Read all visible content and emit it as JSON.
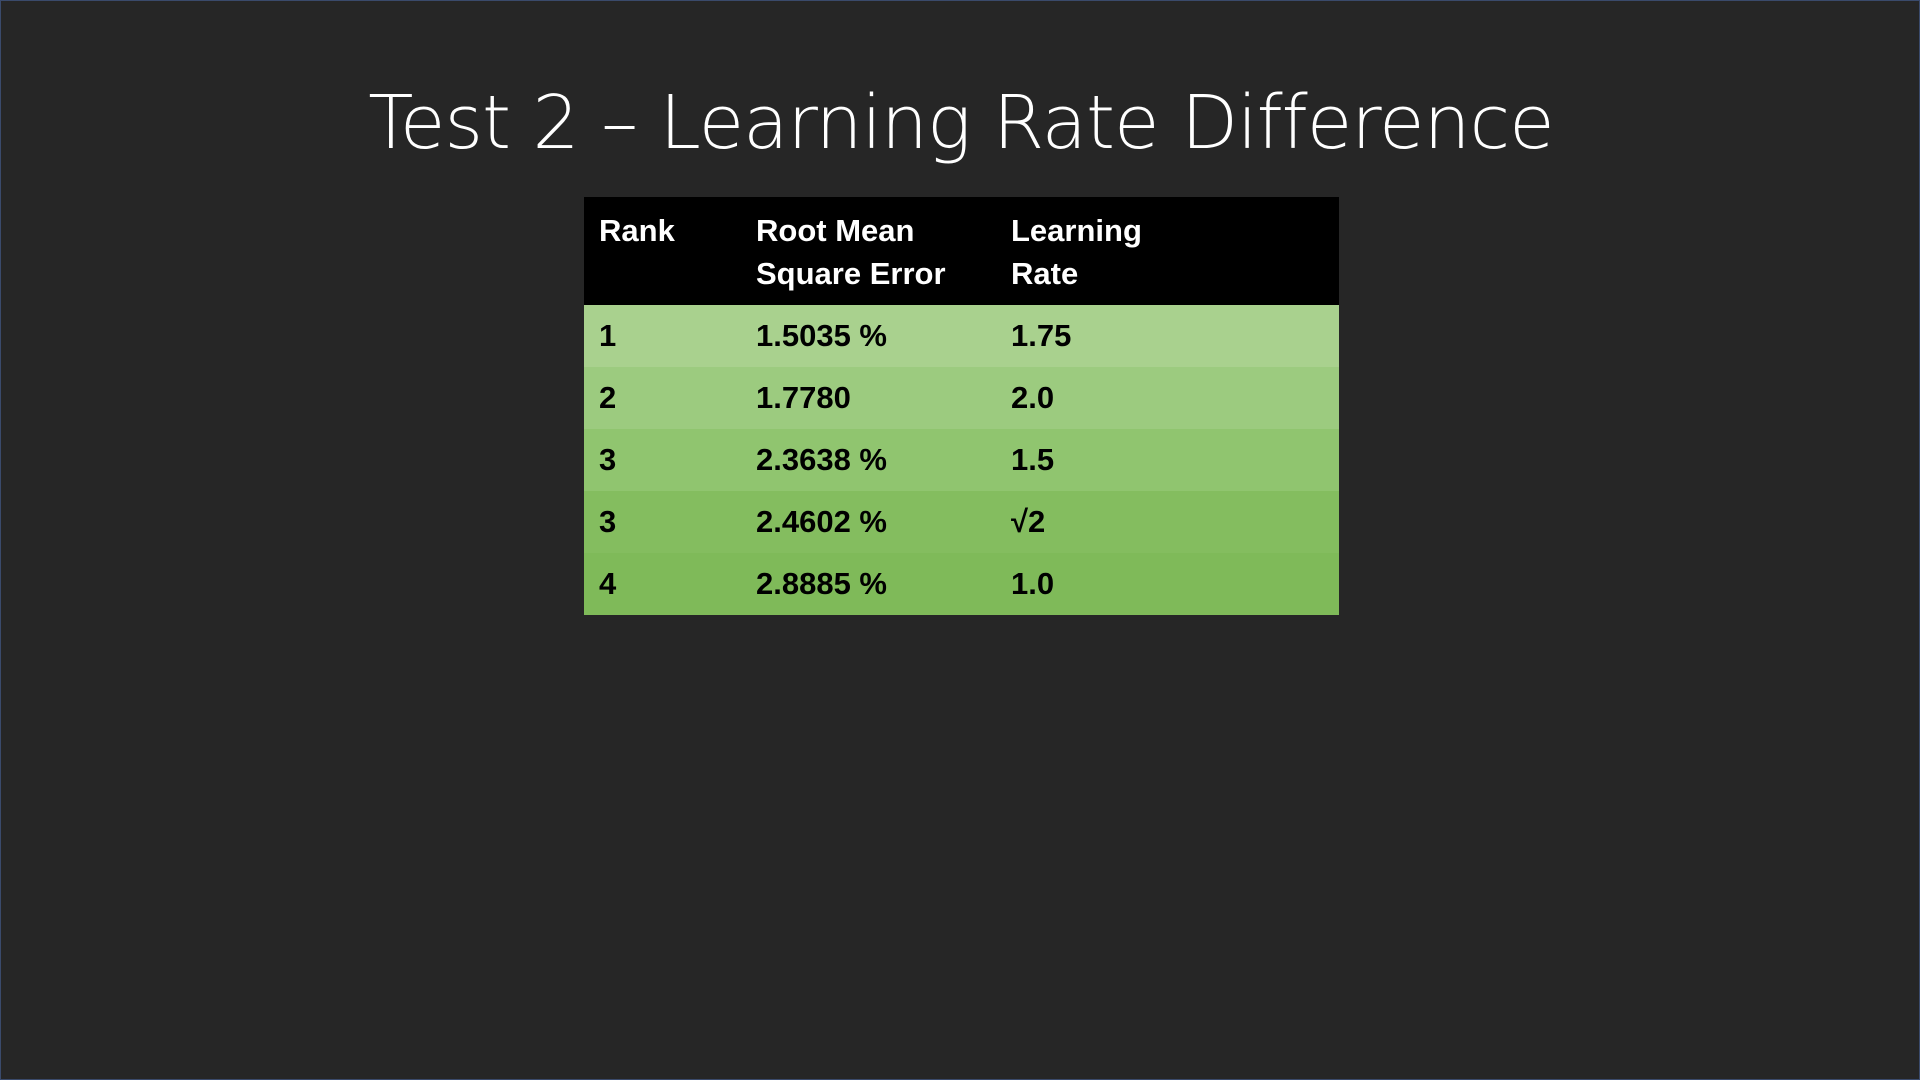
{
  "slide": {
    "title": "Test 2 – Learning Rate Difference"
  },
  "table": {
    "headers": {
      "rank_line1": "Rank",
      "rmse_line1": "Root Mean",
      "rmse_line2": "Square Error",
      "lr_line1": "Learning",
      "lr_line2": "Rate"
    },
    "rows": [
      {
        "rank": "1",
        "rmse": "1.5035 %",
        "lr": "1.75"
      },
      {
        "rank": "2",
        "rmse": "1.7780",
        "lr": "2.0"
      },
      {
        "rank": "3",
        "rmse": "2.3638 %",
        "lr": "1.5"
      },
      {
        "rank": "3",
        "rmse": "2.4602 %",
        "lr": "√2"
      },
      {
        "rank": "4",
        "rmse": "2.8885 %",
        "lr": "1.0"
      }
    ]
  },
  "colors": {
    "background": "#262626",
    "header_bg": "#000000",
    "row_fills": [
      "#a9d18e",
      "#9ccb7f",
      "#90c56f",
      "#84bd5f",
      "#7fba59"
    ]
  }
}
